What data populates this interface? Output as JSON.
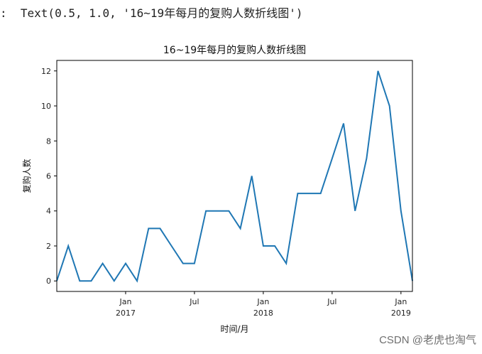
{
  "output_line": ":  Text(0.5, 1.0, '16~19年每月的复购人数折线图')",
  "watermark": "CSDN @老虎也淘气",
  "chart_data": {
    "type": "line",
    "title": "16~19年每月的复购人数折线图",
    "xlabel": "时间/月",
    "ylabel": "复购人数",
    "ylim": [
      -0.6,
      12.6
    ],
    "yticks": [
      0,
      2,
      4,
      6,
      8,
      10,
      12
    ],
    "grid": false,
    "x": [
      "2016-07",
      "2016-08",
      "2016-09",
      "2016-10",
      "2016-11",
      "2016-12",
      "2017-01",
      "2017-02",
      "2017-03",
      "2017-04",
      "2017-05",
      "2017-06",
      "2017-07",
      "2017-08",
      "2017-09",
      "2017-10",
      "2017-11",
      "2017-12",
      "2018-01",
      "2018-02",
      "2018-03",
      "2018-04",
      "2018-05",
      "2018-06",
      "2018-07",
      "2018-08",
      "2018-09",
      "2018-10",
      "2018-11",
      "2018-12",
      "2019-01",
      "2019-02"
    ],
    "series": [
      {
        "color": "#1f77b4",
        "values": [
          0,
          2,
          0,
          0,
          1,
          0,
          1,
          0,
          3,
          3,
          2,
          1,
          1,
          4,
          4,
          4,
          3,
          6,
          2,
          2,
          1,
          5,
          5,
          5,
          7,
          9,
          4,
          7,
          12,
          10,
          4,
          0
        ]
      }
    ],
    "xticks": [
      {
        "x": "2017-01",
        "label": "Jan",
        "year": "2017"
      },
      {
        "x": "2017-07",
        "label": "Jul",
        "year": ""
      },
      {
        "x": "2018-01",
        "label": "Jan",
        "year": "2018"
      },
      {
        "x": "2018-07",
        "label": "Jul",
        "year": ""
      },
      {
        "x": "2019-01",
        "label": "Jan",
        "year": "2019"
      }
    ]
  }
}
